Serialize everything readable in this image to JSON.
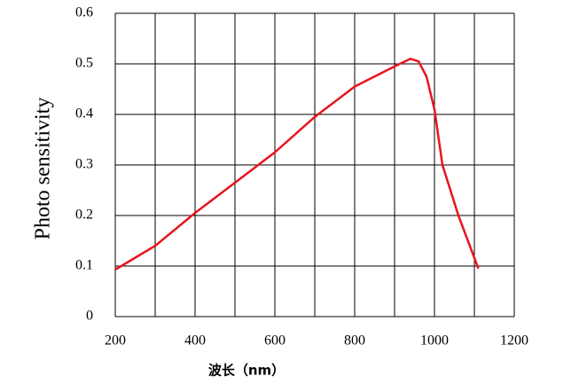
{
  "chart_data": {
    "type": "line",
    "y_label": "Photo sensitivity",
    "x_label": "波长（nm）",
    "x": [
      200,
      300,
      400,
      500,
      600,
      700,
      800,
      900,
      940,
      960,
      980,
      1000,
      1020,
      1060,
      1110
    ],
    "series": [
      {
        "color": "#e8141c",
        "values": [
          0.093,
          0.14,
          0.205,
          0.265,
          0.325,
          0.395,
          0.455,
          0.495,
          0.51,
          0.505,
          0.475,
          0.41,
          0.3,
          0.2,
          0.095
        ]
      }
    ],
    "xlim": [
      200,
      1200
    ],
    "xticks": [
      200,
      400,
      600,
      800,
      1000,
      1200
    ],
    "xminor": [
      300,
      500,
      700,
      900,
      1100
    ],
    "ylim": [
      0,
      0.6
    ],
    "yticks": [
      0,
      0.1,
      0.2,
      0.3,
      0.4,
      0.5,
      0.6
    ],
    "grid": true
  }
}
